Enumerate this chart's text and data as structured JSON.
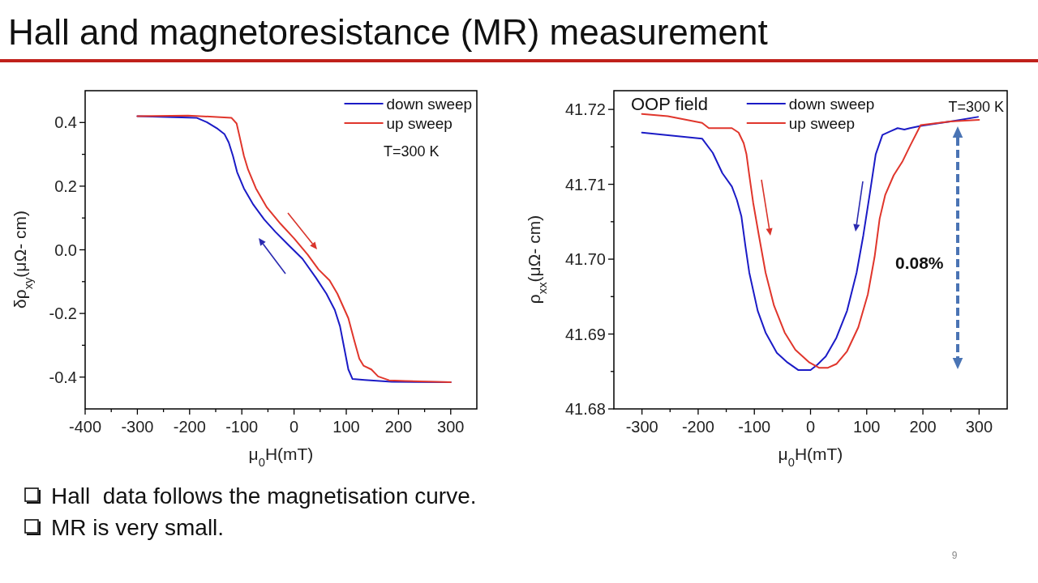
{
  "chart_data": [
    {
      "type": "line",
      "xlabel": "μ$_{0}$H(mT)",
      "ylabel": "δρ$_{xy}$(μΩ- cm)",
      "xlim": [
        -400,
        350
      ],
      "xticks": [
        -400,
        {
          "value": -350,
          "label": null
        },
        -300,
        {
          "value": -250,
          "label": null
        },
        -200,
        {
          "value": -150,
          "label": null
        },
        -100,
        {
          "value": -50,
          "label": null
        },
        0,
        {
          "value": 50,
          "label": null
        },
        100,
        {
          "value": 150,
          "label": null
        },
        200,
        {
          "value": 250,
          "label": null
        },
        300
      ],
      "ylim": [
        -0.5,
        0.5
      ],
      "yticks": [
        -0.4,
        {
          "value": -0.3,
          "label": null
        },
        -0.2,
        {
          "value": -0.1,
          "label": null
        },
        {
          "value": 0,
          "label": "0.0"
        },
        {
          "value": 0.1,
          "label": null
        },
        0.2,
        {
          "value": 0.3,
          "label": null
        },
        0.4
      ],
      "legend": "top right",
      "annotations": [
        "T=300 K"
      ],
      "series": [
        {
          "name": "down sweep",
          "color": "#1b1bc6",
          "x": [
            -300,
            -187,
            -167,
            -146,
            -133,
            -125,
            -117,
            -109,
            -96,
            -78,
            -57,
            -36,
            -10,
            16,
            42,
            62,
            78,
            88,
            96,
            104,
            112,
            135,
            187,
            300
          ],
          "values": [
            0.42,
            0.415,
            0.401,
            0.38,
            0.363,
            0.337,
            0.295,
            0.244,
            0.193,
            0.142,
            0.095,
            0.057,
            0.014,
            -0.028,
            -0.088,
            -0.138,
            -0.189,
            -0.24,
            -0.308,
            -0.376,
            -0.406,
            -0.409,
            -0.415,
            -0.416
          ]
        },
        {
          "name": "up sweep",
          "color": "#e0362c",
          "x": [
            -300,
            -203,
            -120,
            -110,
            -104,
            -96,
            -88,
            -73,
            -52,
            -26,
            0,
            26,
            47,
            68,
            83,
            104,
            115,
            125,
            133,
            148,
            161,
            182,
            213,
            300
          ],
          "values": [
            0.42,
            0.422,
            0.415,
            0.397,
            0.354,
            0.295,
            0.252,
            0.193,
            0.133,
            0.082,
            0.036,
            -0.015,
            -0.062,
            -0.096,
            -0.138,
            -0.215,
            -0.283,
            -0.342,
            -0.364,
            -0.376,
            -0.398,
            -0.41,
            -0.412,
            -0.416
          ]
        }
      ]
    },
    {
      "type": "line",
      "xlabel": "μ$_{0}$H(mT)",
      "ylabel": "ρ$_{xx}$(μΩ- cm)",
      "xlim": [
        -350,
        350
      ],
      "xticks": [
        -300,
        {
          "value": -250,
          "label": null
        },
        -200,
        {
          "value": -150,
          "label": null
        },
        -100,
        {
          "value": -50,
          "label": null
        },
        0,
        {
          "value": 50,
          "label": null
        },
        100,
        {
          "value": 150,
          "label": null
        },
        200,
        {
          "value": 250,
          "label": null
        },
        300
      ],
      "ylim": [
        41.68,
        41.7225
      ],
      "yticks": [
        41.68,
        {
          "value": 41.685,
          "label": null
        },
        41.69,
        {
          "value": 41.695,
          "label": null
        },
        {
          "value": 41.7,
          "label": "41.70"
        },
        {
          "value": 41.705,
          "label": null
        },
        41.71,
        {
          "value": 41.715,
          "label": null
        },
        41.72
      ],
      "legend": "top",
      "annotations": [
        "OOP field",
        "T=300 K",
        "0.08%"
      ],
      "series": [
        {
          "name": "down sweep",
          "color": "#1b1bc6",
          "x": [
            -300,
            -193,
            -174,
            -157,
            -140,
            -131,
            -123,
            -116,
            -109,
            -94,
            -80,
            -60,
            -41,
            -22,
            0,
            12,
            27,
            46,
            65,
            82,
            94,
            106,
            116,
            128,
            143,
            155,
            167,
            177,
            196,
            249,
            298
          ],
          "values": [
            41.7169,
            41.7161,
            41.7142,
            41.7115,
            41.7097,
            41.7079,
            41.7057,
            41.7018,
            41.6982,
            41.6931,
            41.6902,
            41.6875,
            41.6862,
            41.6852,
            41.6852,
            41.6859,
            41.687,
            41.6895,
            41.6931,
            41.6982,
            41.7032,
            41.709,
            41.714,
            41.7166,
            41.7171,
            41.7175,
            41.7173,
            41.7175,
            41.7178,
            41.7184,
            41.719
          ]
        },
        {
          "name": "up sweep",
          "color": "#e0362c",
          "x": [
            -300,
            -254,
            -193,
            -181,
            -140,
            -128,
            -119,
            -114,
            -109,
            -102,
            -92,
            -80,
            -65,
            -46,
            -27,
            -2,
            15,
            31,
            46,
            65,
            85,
            102,
            114,
            123,
            133,
            148,
            164,
            177,
            196,
            249,
            300
          ],
          "values": [
            41.7194,
            41.7191,
            41.7182,
            41.7175,
            41.7175,
            41.7169,
            41.7155,
            41.714,
            41.7112,
            41.7075,
            41.7032,
            41.6982,
            41.6938,
            41.6902,
            41.6879,
            41.6862,
            41.6855,
            41.6855,
            41.686,
            41.6877,
            41.6909,
            41.6953,
            41.7003,
            41.7054,
            41.7086,
            41.7112,
            41.7131,
            41.7151,
            41.7179,
            41.7184,
            41.7186
          ]
        }
      ]
    },
    {
      "type": "other",
      "title": "Hall and magnetoresistance (MR) measurement",
      "annotations": [
        "Hall  data follows the magnetisation curve.",
        "MR is very small.",
        "9"
      ]
    }
  ]
}
